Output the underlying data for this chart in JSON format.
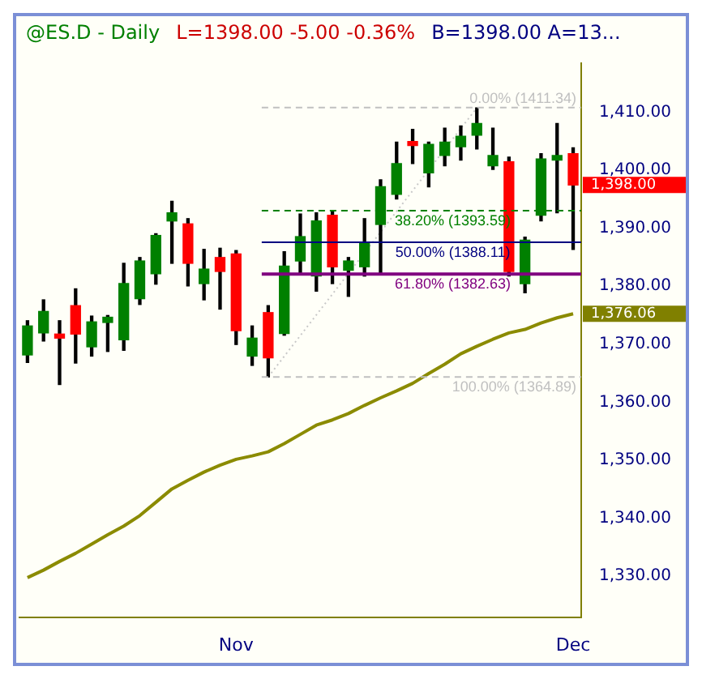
{
  "chart_data": {
    "type": "candlestick",
    "title": "@ES.D - Daily",
    "annotations": [
      "L=1398.00  -5.00  -0.36%",
      "B=1398.00  A=13...",
      "1,398.00",
      "1,376.06"
    ],
    "categories": [
      null,
      null,
      null,
      null,
      null,
      null,
      null,
      null,
      null,
      null,
      null,
      null,
      null,
      "Nov",
      null,
      null,
      null,
      null,
      null,
      null,
      null,
      null,
      null,
      null,
      null,
      null,
      null,
      null,
      null,
      null,
      null,
      null,
      null,
      null,
      "Dec"
    ],
    "ohlc": [
      [
        1368.7,
        1374.6,
        1367.4,
        1373.7
      ],
      [
        1372.5,
        1378.2,
        1371.1,
        1376.2
      ],
      [
        1372.3,
        1374.6,
        1363.6,
        1371.6
      ],
      [
        1377.2,
        1380.1,
        1367.3,
        1372.3
      ],
      [
        1370.1,
        1375.4,
        1368.5,
        1374.4
      ],
      [
        1374.3,
        1375.5,
        1369.3,
        1375.2
      ],
      [
        1371.3,
        1384.5,
        1369.5,
        1381.0
      ],
      [
        1378.4,
        1385.5,
        1377.4,
        1384.9
      ],
      [
        1382.7,
        1389.6,
        1380.9,
        1389.3
      ],
      [
        1391.8,
        1395.2,
        1384.5,
        1393.2
      ],
      [
        1391.3,
        1392.2,
        1380.6,
        1384.5
      ],
      [
        1381.0,
        1386.9,
        1378.2,
        1383.5
      ],
      [
        1385.5,
        1387.1,
        1376.6,
        1383.1
      ],
      [
        1386.1,
        1386.7,
        1370.5,
        1372.9
      ],
      [
        1368.5,
        1373.7,
        1366.9,
        1371.6
      ],
      [
        1376.0,
        1377.2,
        1364.9,
        1368.2
      ],
      [
        1372.4,
        1386.5,
        1372.1,
        1384.0
      ],
      [
        1384.9,
        1393.0,
        1382.8,
        1389.1
      ],
      [
        1382.3,
        1393.2,
        1379.7,
        1391.8
      ],
      [
        1392.8,
        1393.6,
        1381.0,
        1383.9
      ],
      [
        1383.3,
        1385.5,
        1378.8,
        1384.9
      ],
      [
        1383.9,
        1392.2,
        1382.3,
        1387.9
      ],
      [
        1391.2,
        1398.9,
        1382.8,
        1397.7
      ],
      [
        1396.4,
        1405.4,
        1395.6,
        1401.7
      ],
      [
        1405.5,
        1407.6,
        1401.7,
        1404.8
      ],
      [
        1400.1,
        1405.4,
        1397.7,
        1405.0
      ],
      [
        1403.1,
        1407.8,
        1401.3,
        1405.4
      ],
      [
        1404.6,
        1408.2,
        1402.3,
        1406.4
      ],
      [
        1406.6,
        1411.3,
        1404.2,
        1408.6
      ],
      [
        1401.3,
        1407.8,
        1400.7,
        1403.1
      ],
      [
        1402.0,
        1402.8,
        1382.3,
        1383.1
      ],
      [
        1381.0,
        1389.0,
        1379.4,
        1388.5
      ],
      [
        1392.8,
        1403.4,
        1391.8,
        1402.5
      ],
      [
        1402.3,
        1408.6,
        1393.2,
        1403.1
      ],
      [
        1403.4,
        1404.4,
        1386.9,
        1398.0
      ]
    ],
    "colors": [
      "#008000",
      "#008000",
      "#ff0000",
      "#ff0000",
      "#008000",
      "#008000",
      "#008000",
      "#008000",
      "#008000",
      "#008000",
      "#ff0000",
      "#008000",
      "#ff0000",
      "#ff0000",
      "#008000",
      "#ff0000",
      "#008000",
      "#008000",
      "#008000",
      "#ff0000",
      "#008000",
      "#008000",
      "#008000",
      "#008000",
      "#ff0000",
      "#008000",
      "#008000",
      "#008000",
      "#008000",
      "#008000",
      "#ff0000",
      "#008000",
      "#008000",
      "#008000",
      "#ff0000"
    ],
    "series": [
      {
        "type": "line",
        "color": "#8b8b00",
        "values": [
          1330.3,
          1331.6,
          1333.1,
          1334.5,
          1336.1,
          1337.7,
          1339.2,
          1341.0,
          1343.3,
          1345.6,
          1347.1,
          1348.5,
          1349.7,
          1350.7,
          1351.3,
          1352.0,
          1353.4,
          1355.0,
          1356.6,
          1357.5,
          1358.6,
          1360.0,
          1361.3,
          1362.5,
          1363.8,
          1365.5,
          1367.1,
          1368.9,
          1370.2,
          1371.4,
          1372.5,
          1373.1,
          1374.2,
          1375.1,
          1375.8
        ]
      },
      {
        "type": "line",
        "color": "#c8c8c8",
        "line_style": "dotted",
        "values": [
          null,
          null,
          null,
          null,
          null,
          null,
          null,
          null,
          null,
          null,
          null,
          null,
          null,
          null,
          null,
          1364.9,
          null,
          null,
          null,
          null,
          null,
          null,
          null,
          null,
          null,
          null,
          null,
          null,
          1411.3,
          null,
          null,
          null,
          null,
          null,
          null
        ]
      }
    ],
    "ref_lines": [
      {
        "axis": "y",
        "value": 1411.34,
        "label": "0.00% (1411.34)",
        "color": "#c0c0c0",
        "line_style": "dashed"
      },
      {
        "axis": "y",
        "value": 1393.59,
        "label": "38.20% (1393.59)",
        "color": "#008000",
        "line_style": "dashed"
      },
      {
        "axis": "y",
        "value": 1388.11,
        "label": "50.00% (1388.11)",
        "color": "#000080",
        "line_style": "solid"
      },
      {
        "axis": "y",
        "value": 1382.63,
        "label": "61.80% (1382.63)",
        "color": "#800080",
        "line_style": "solid"
      },
      {
        "axis": "y",
        "value": 1364.89,
        "label": "100.00% (1364.89)",
        "color": "#c0c0c0",
        "line_style": "dashed"
      }
    ],
    "ylim": [
      1323.5,
      1419
    ],
    "yticks": [
      {
        "value": 1330,
        "label": "1,330.00"
      },
      {
        "value": 1340,
        "label": "1,340.00"
      },
      {
        "value": 1350,
        "label": "1,350.00"
      },
      {
        "value": 1360,
        "label": "1,360.00"
      },
      {
        "value": 1370,
        "label": "1,370.00"
      },
      {
        "value": 1380,
        "label": "1,380.00"
      },
      {
        "value": 1390,
        "label": "1,390.00"
      },
      {
        "value": 1400,
        "label": "1,400.00"
      },
      {
        "value": 1410,
        "label": "1,410.00"
      }
    ],
    "grid": false,
    "legend": false,
    "marker": "none"
  }
}
